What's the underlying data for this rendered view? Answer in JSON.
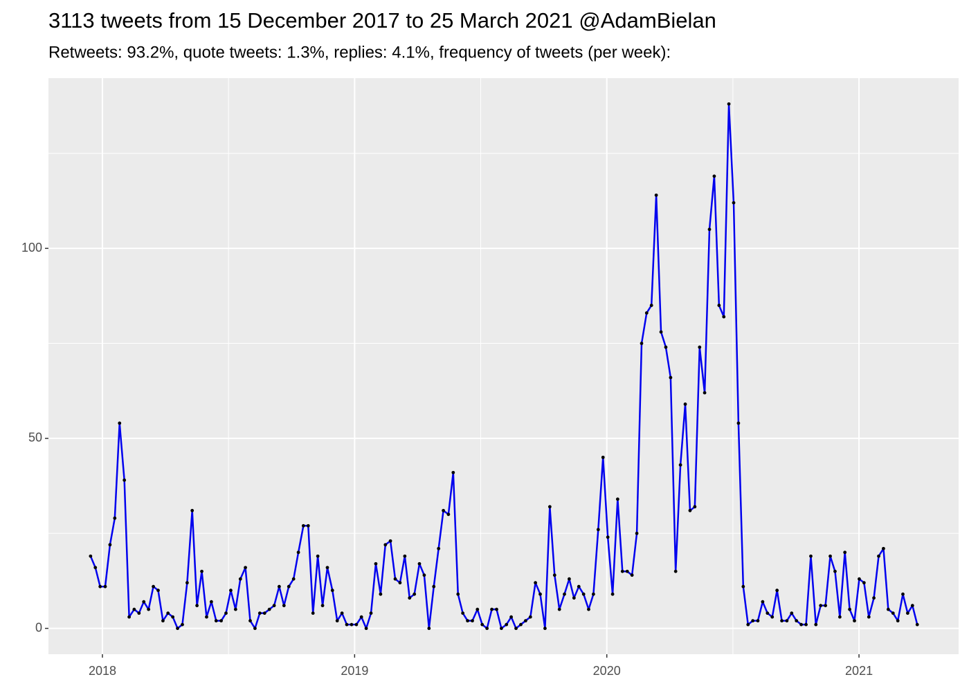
{
  "chart_data": {
    "type": "line",
    "title": "3113 tweets from 15 December 2017 to 25 March 2021 @AdamBielan",
    "subtitle": "Retweets: 93.2%, quote tweets: 1.3%, replies: 4.1%, frequency of tweets (per week):",
    "x": [
      2017.953,
      2017.972,
      2017.991,
      2018.011,
      2018.03,
      2018.049,
      2018.068,
      2018.087,
      2018.106,
      2018.126,
      2018.145,
      2018.164,
      2018.183,
      2018.202,
      2018.221,
      2018.24,
      2018.26,
      2018.279,
      2018.298,
      2018.317,
      2018.336,
      2018.356,
      2018.375,
      2018.394,
      2018.413,
      2018.432,
      2018.451,
      2018.471,
      2018.49,
      2018.509,
      2018.528,
      2018.547,
      2018.567,
      2018.586,
      2018.605,
      2018.624,
      2018.643,
      2018.662,
      2018.681,
      2018.701,
      2018.72,
      2018.739,
      2018.758,
      2018.777,
      2018.797,
      2018.816,
      2018.835,
      2018.854,
      2018.873,
      2018.892,
      2018.912,
      2018.931,
      2018.95,
      2018.969,
      2018.988,
      2019.007,
      2019.027,
      2019.046,
      2019.065,
      2019.084,
      2019.103,
      2019.122,
      2019.142,
      2019.161,
      2019.18,
      2019.199,
      2019.218,
      2019.237,
      2019.257,
      2019.276,
      2019.295,
      2019.314,
      2019.333,
      2019.352,
      2019.372,
      2019.391,
      2019.41,
      2019.429,
      2019.448,
      2019.467,
      2019.487,
      2019.506,
      2019.525,
      2019.544,
      2019.563,
      2019.582,
      2019.602,
      2019.621,
      2019.64,
      2019.659,
      2019.678,
      2019.697,
      2019.717,
      2019.736,
      2019.755,
      2019.774,
      2019.793,
      2019.812,
      2019.832,
      2019.851,
      2019.87,
      2019.889,
      2019.908,
      2019.928,
      2019.947,
      2019.966,
      2019.985,
      2020.004,
      2020.023,
      2020.043,
      2020.062,
      2020.081,
      2020.1,
      2020.119,
      2020.138,
      2020.158,
      2020.177,
      2020.196,
      2020.215,
      2020.234,
      2020.253,
      2020.273,
      2020.292,
      2020.311,
      2020.33,
      2020.349,
      2020.368,
      2020.388,
      2020.407,
      2020.426,
      2020.445,
      2020.464,
      2020.484,
      2020.503,
      2020.522,
      2020.541,
      2020.56,
      2020.579,
      2020.599,
      2020.618,
      2020.637,
      2020.656,
      2020.675,
      2020.694,
      2020.714,
      2020.733,
      2020.752,
      2020.771,
      2020.79,
      2020.809,
      2020.829,
      2020.848,
      2020.867,
      2020.886,
      2020.905,
      2020.924,
      2020.944,
      2020.963,
      2020.982,
      2021.001,
      2021.02,
      2021.039,
      2021.059,
      2021.078,
      2021.097,
      2021.116,
      2021.135,
      2021.154,
      2021.174,
      2021.193,
      2021.212,
      2021.231
    ],
    "values": [
      19,
      16,
      11,
      11,
      22,
      29,
      54,
      39,
      3,
      5,
      4,
      7,
      5,
      11,
      10,
      2,
      4,
      3,
      0,
      1,
      12,
      31,
      6,
      15,
      3,
      7,
      2,
      2,
      4,
      10,
      5,
      13,
      16,
      2,
      0,
      4,
      4,
      5,
      6,
      11,
      6,
      11,
      13,
      20,
      27,
      27,
      4,
      19,
      6,
      16,
      10,
      2,
      4,
      1,
      1,
      1,
      3,
      0,
      4,
      17,
      9,
      22,
      23,
      13,
      12,
      19,
      8,
      9,
      17,
      14,
      0,
      11,
      21,
      31,
      30,
      41,
      9,
      4,
      2,
      2,
      5,
      1,
      0,
      5,
      5,
      0,
      1,
      3,
      0,
      1,
      2,
      3,
      12,
      9,
      0,
      32,
      14,
      5,
      9,
      13,
      8,
      11,
      9,
      5,
      9,
      26,
      45,
      24,
      9,
      34,
      15,
      15,
      14,
      25,
      75,
      83,
      85,
      114,
      78,
      74,
      66,
      15,
      43,
      59,
      31,
      32,
      74,
      62,
      105,
      119,
      85,
      82,
      138,
      112,
      54,
      11,
      1,
      2,
      2,
      7,
      4,
      3,
      10,
      2,
      2,
      4,
      2,
      1,
      1,
      19,
      1,
      6,
      6,
      19,
      15,
      3,
      20,
      5,
      2,
      13,
      12,
      3,
      8,
      19,
      21,
      5,
      4,
      2,
      9,
      4,
      6,
      1
    ],
    "color": "#0000ee",
    "marker_color": "#000000",
    "xlim": [
      2017.786,
      2021.395
    ],
    "xticks": [
      2018,
      2019,
      2020,
      2021
    ],
    "ylim": [
      -6.8,
      144.8
    ],
    "yticks": [
      0,
      50,
      100
    ],
    "grid": true
  }
}
